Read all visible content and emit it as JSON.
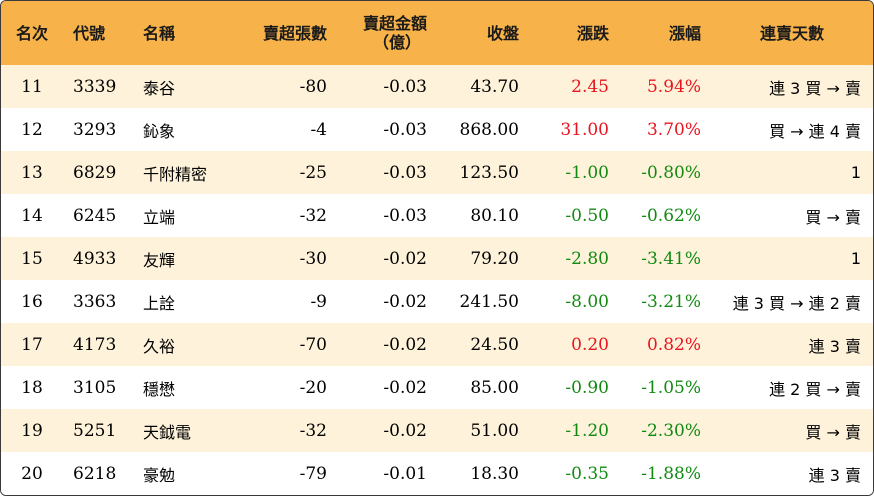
{
  "headers": {
    "rank": "名次",
    "code": "代號",
    "name": "名稱",
    "sell_lots": "賣超張數",
    "sell_amount_line1": "賣超金額",
    "sell_amount_line2": "（億）",
    "close": "收盤",
    "change": "漲跌",
    "change_pct": "漲幅",
    "streak": "連賣天數"
  },
  "colors": {
    "header_bg": "#f7b34a",
    "row_alt_bg": "#fef3da",
    "up": "#e8141e",
    "down": "#128a12"
  },
  "rows": [
    {
      "rank": "11",
      "code": "3339",
      "name": "泰谷",
      "sell_lots": "-80",
      "sell_amount": "-0.03",
      "close": "43.70",
      "change": "2.45",
      "change_pct": "5.94%",
      "dir": "up",
      "streak": "連 3 買 → 賣"
    },
    {
      "rank": "12",
      "code": "3293",
      "name": "鈊象",
      "sell_lots": "-4",
      "sell_amount": "-0.03",
      "close": "868.00",
      "change": "31.00",
      "change_pct": "3.70%",
      "dir": "up",
      "streak": "買 → 連 4 賣"
    },
    {
      "rank": "13",
      "code": "6829",
      "name": "千附精密",
      "sell_lots": "-25",
      "sell_amount": "-0.03",
      "close": "123.50",
      "change": "-1.00",
      "change_pct": "-0.80%",
      "dir": "down",
      "streak": "1"
    },
    {
      "rank": "14",
      "code": "6245",
      "name": "立端",
      "sell_lots": "-32",
      "sell_amount": "-0.03",
      "close": "80.10",
      "change": "-0.50",
      "change_pct": "-0.62%",
      "dir": "down",
      "streak": "買 → 賣"
    },
    {
      "rank": "15",
      "code": "4933",
      "name": "友輝",
      "sell_lots": "-30",
      "sell_amount": "-0.02",
      "close": "79.20",
      "change": "-2.80",
      "change_pct": "-3.41%",
      "dir": "down",
      "streak": "1"
    },
    {
      "rank": "16",
      "code": "3363",
      "name": "上詮",
      "sell_lots": "-9",
      "sell_amount": "-0.02",
      "close": "241.50",
      "change": "-8.00",
      "change_pct": "-3.21%",
      "dir": "down",
      "streak": "連 3 買 → 連 2 賣"
    },
    {
      "rank": "17",
      "code": "4173",
      "name": "久裕",
      "sell_lots": "-70",
      "sell_amount": "-0.02",
      "close": "24.50",
      "change": "0.20",
      "change_pct": "0.82%",
      "dir": "up",
      "streak": "連 3 賣"
    },
    {
      "rank": "18",
      "code": "3105",
      "name": "穩懋",
      "sell_lots": "-20",
      "sell_amount": "-0.02",
      "close": "85.00",
      "change": "-0.90",
      "change_pct": "-1.05%",
      "dir": "down",
      "streak": "連 2 買 → 賣"
    },
    {
      "rank": "19",
      "code": "5251",
      "name": "天鉞電",
      "sell_lots": "-32",
      "sell_amount": "-0.02",
      "close": "51.00",
      "change": "-1.20",
      "change_pct": "-2.30%",
      "dir": "down",
      "streak": "買 → 賣"
    },
    {
      "rank": "20",
      "code": "6218",
      "name": "豪勉",
      "sell_lots": "-79",
      "sell_amount": "-0.01",
      "close": "18.30",
      "change": "-0.35",
      "change_pct": "-1.88%",
      "dir": "down",
      "streak": "連 3 賣"
    }
  ]
}
